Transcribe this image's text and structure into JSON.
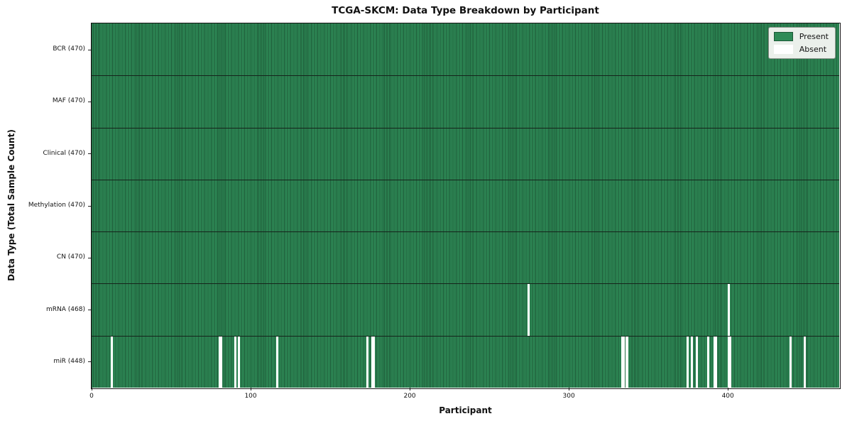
{
  "chart_data": {
    "type": "heatmap",
    "title": "TCGA-SKCM: Data Type Breakdown by Participant",
    "xlabel": "Participant",
    "ylabel": "Data Type (Total Sample Count)",
    "x_ticks": [
      0,
      100,
      200,
      300,
      400
    ],
    "xlim": [
      0,
      470
    ],
    "n_participants": 470,
    "grid": "row separators only",
    "legend_position": "upper right",
    "legend": [
      {
        "name": "present",
        "label": "Present",
        "color": "#2e8b57"
      },
      {
        "name": "absent",
        "label": "Absent",
        "color": "#ffffff"
      }
    ],
    "colors": {
      "present": "#2e8b57",
      "cell_edge": "#1d5937",
      "absent": "#ffffff",
      "row_separator": "#15231b",
      "legend_bg": "#ebf0eb",
      "text": "#111111"
    },
    "rows": [
      {
        "label": "BCR (470)",
        "data_type": "BCR",
        "present_count": 470,
        "absent_participants": []
      },
      {
        "label": "MAF (470)",
        "data_type": "MAF",
        "present_count": 470,
        "absent_participants": []
      },
      {
        "label": "Clinical (470)",
        "data_type": "Clinical",
        "present_count": 470,
        "absent_participants": []
      },
      {
        "label": "Methylation (470)",
        "data_type": "Methylation",
        "present_count": 470,
        "absent_participants": []
      },
      {
        "label": "CN (470)",
        "data_type": "CN",
        "present_count": 470,
        "absent_participants": []
      },
      {
        "label": "mRNA (468)",
        "data_type": "mRNA",
        "present_count": 468,
        "absent_participants": [
          274,
          400
        ]
      },
      {
        "label": "miR (448)",
        "data_type": "miR",
        "present_count": 448,
        "absent_participants": [
          12,
          80,
          81,
          90,
          92,
          116,
          173,
          176,
          177,
          333,
          334,
          336,
          374,
          377,
          380,
          387,
          391,
          392,
          400,
          401,
          439,
          448
        ]
      }
    ]
  }
}
